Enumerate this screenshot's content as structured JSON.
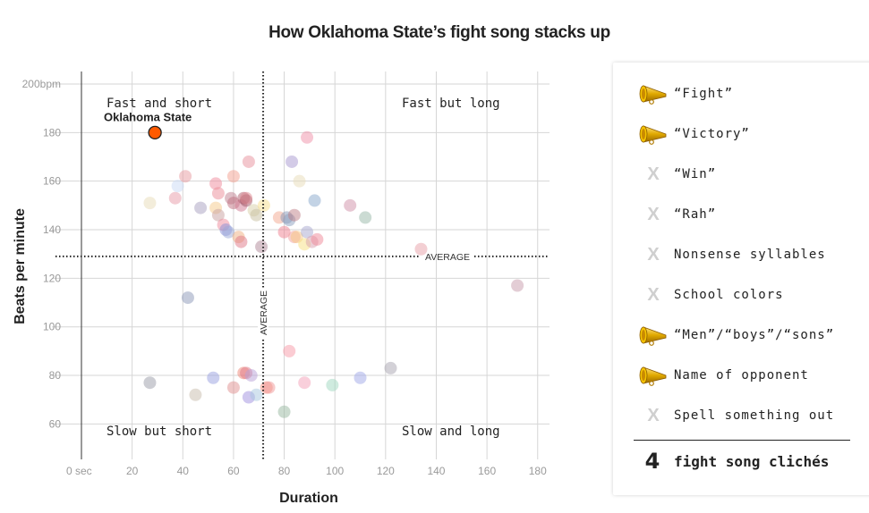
{
  "chart_data": {
    "type": "scatter",
    "title": "How Oklahoma State’s fight song stacks up",
    "xlabel": "Duration",
    "ylabel": "Beats per minute",
    "xlim": [
      0,
      184
    ],
    "ylim": [
      46,
      205
    ],
    "x_ticks": [
      {
        "value": 0,
        "label": "0 sec"
      },
      {
        "value": 20,
        "label": "20"
      },
      {
        "value": 40,
        "label": "40"
      },
      {
        "value": 60,
        "label": "60"
      },
      {
        "value": 80,
        "label": "80"
      },
      {
        "value": 100,
        "label": "100"
      },
      {
        "value": 120,
        "label": "120"
      },
      {
        "value": 140,
        "label": "140"
      },
      {
        "value": 160,
        "label": "160"
      },
      {
        "value": 180,
        "label": "180"
      }
    ],
    "y_ticks": [
      {
        "value": 60,
        "label": "60"
      },
      {
        "value": 80,
        "label": "80"
      },
      {
        "value": 100,
        "label": "100"
      },
      {
        "value": 120,
        "label": "120"
      },
      {
        "value": 140,
        "label": "140"
      },
      {
        "value": 160,
        "label": "160"
      },
      {
        "value": 180,
        "label": "180"
      },
      {
        "value": 200,
        "label": "200bpm"
      }
    ],
    "grid": true,
    "average": {
      "duration": 71.7,
      "bpm": 129,
      "label": "AVERAGE"
    },
    "quadrant_labels": {
      "top_left": "Fast and short",
      "top_right": "Fast but long",
      "bottom_left": "Slow but short",
      "bottom_right": "Slow and long"
    },
    "highlight": {
      "name": "Oklahoma State",
      "duration": 29,
      "bpm": 180,
      "color": "#ff5a00"
    },
    "points": [
      {
        "duration": 27,
        "bpm": 151,
        "color": "#e8dcb8"
      },
      {
        "duration": 37,
        "bpm": 153,
        "color": "#e89aa8"
      },
      {
        "duration": 38,
        "bpm": 158,
        "color": "#c9daf5"
      },
      {
        "duration": 41,
        "bpm": 162,
        "color": "#e89aa0"
      },
      {
        "duration": 47,
        "bpm": 149,
        "color": "#a8a0c0"
      },
      {
        "duration": 53,
        "bpm": 149,
        "color": "#f5c98a"
      },
      {
        "duration": 53,
        "bpm": 159,
        "color": "#f08a9c"
      },
      {
        "duration": 54,
        "bpm": 155,
        "color": "#ec8c98"
      },
      {
        "duration": 54,
        "bpm": 146,
        "color": "#c8a0a0"
      },
      {
        "duration": 56,
        "bpm": 142,
        "color": "#f08a9c"
      },
      {
        "duration": 57,
        "bpm": 140,
        "color": "#8a90d8"
      },
      {
        "duration": 58,
        "bpm": 139,
        "color": "#9aa8d8"
      },
      {
        "duration": 59,
        "bpm": 153,
        "color": "#c08090"
      },
      {
        "duration": 60,
        "bpm": 151,
        "color": "#c07080"
      },
      {
        "duration": 60,
        "bpm": 162,
        "color": "#f4a090"
      },
      {
        "duration": 62,
        "bpm": 137,
        "color": "#f0b080"
      },
      {
        "duration": 63,
        "bpm": 135,
        "color": "#e07888"
      },
      {
        "duration": 63,
        "bpm": 150,
        "color": "#d07890"
      },
      {
        "duration": 64,
        "bpm": 153,
        "color": "#b06070"
      },
      {
        "duration": 65,
        "bpm": 152,
        "color": "#a05868"
      },
      {
        "duration": 65,
        "bpm": 153,
        "color": "#e08890"
      },
      {
        "duration": 66,
        "bpm": 168,
        "color": "#e8909c"
      },
      {
        "duration": 68,
        "bpm": 148,
        "color": "#d8d0a8"
      },
      {
        "duration": 69,
        "bpm": 146,
        "color": "#c8c0a0"
      },
      {
        "duration": 71,
        "bpm": 133,
        "color": "#b08898"
      },
      {
        "duration": 72,
        "bpm": 150,
        "color": "#f8e08c"
      },
      {
        "duration": 78,
        "bpm": 145,
        "color": "#f4a890"
      },
      {
        "duration": 80,
        "bpm": 139,
        "color": "#f08090"
      },
      {
        "duration": 81,
        "bpm": 145,
        "color": "#8898b8"
      },
      {
        "duration": 82,
        "bpm": 144,
        "color": "#8ca0c0"
      },
      {
        "duration": 83,
        "bpm": 168,
        "color": "#a898d0"
      },
      {
        "duration": 84,
        "bpm": 146,
        "color": "#c08088"
      },
      {
        "duration": 84,
        "bpm": 137,
        "color": "#f0a0a0"
      },
      {
        "duration": 85,
        "bpm": 137,
        "color": "#f8c880"
      },
      {
        "duration": 86,
        "bpm": 160,
        "color": "#e8dcb8"
      },
      {
        "duration": 88,
        "bpm": 134,
        "color": "#f8e080"
      },
      {
        "duration": 89,
        "bpm": 139,
        "color": "#a8a8d0"
      },
      {
        "duration": 89,
        "bpm": 178,
        "color": "#f090a8"
      },
      {
        "duration": 91,
        "bpm": 135,
        "color": "#d8a0b0"
      },
      {
        "duration": 92,
        "bpm": 152,
        "color": "#88a8cc"
      },
      {
        "duration": 93,
        "bpm": 136,
        "color": "#f08898"
      },
      {
        "duration": 106,
        "bpm": 150,
        "color": "#d090a8"
      },
      {
        "duration": 112,
        "bpm": 145,
        "color": "#98b8a8"
      },
      {
        "duration": 134,
        "bpm": 132,
        "color": "#e8a0a8"
      },
      {
        "duration": 172,
        "bpm": 117,
        "color": "#c89cac"
      },
      {
        "duration": 42,
        "bpm": 112,
        "color": "#8c98b8"
      },
      {
        "duration": 27,
        "bpm": 77,
        "color": "#9a9ca8"
      },
      {
        "duration": 45,
        "bpm": 72,
        "color": "#c8bcac"
      },
      {
        "duration": 52,
        "bpm": 79,
        "color": "#98a0e0"
      },
      {
        "duration": 60,
        "bpm": 75,
        "color": "#e09090"
      },
      {
        "duration": 64,
        "bpm": 81,
        "color": "#f08878"
      },
      {
        "duration": 65,
        "bpm": 81,
        "color": "#e07888"
      },
      {
        "duration": 66,
        "bpm": 71,
        "color": "#a090e0"
      },
      {
        "duration": 67,
        "bpm": 80,
        "color": "#b8a0d8"
      },
      {
        "duration": 69,
        "bpm": 72,
        "color": "#a8c8e0"
      },
      {
        "duration": 73,
        "bpm": 75,
        "color": "#f89080"
      },
      {
        "duration": 74,
        "bpm": 75,
        "color": "#f09898"
      },
      {
        "duration": 80,
        "bpm": 65,
        "color": "#98b8a0"
      },
      {
        "duration": 82,
        "bpm": 90,
        "color": "#f89aa8"
      },
      {
        "duration": 88,
        "bpm": 77,
        "color": "#f4a0b8"
      },
      {
        "duration": 99,
        "bpm": 76,
        "color": "#a0d8c0"
      },
      {
        "duration": 110,
        "bpm": 79,
        "color": "#a0a8e8"
      },
      {
        "duration": 122,
        "bpm": 83,
        "color": "#a8a4b0"
      }
    ]
  },
  "panel": {
    "items": [
      {
        "label": "“Fight”",
        "present": true,
        "icon": "megaphone-icon"
      },
      {
        "label": "“Victory”",
        "present": true,
        "icon": "megaphone-icon"
      },
      {
        "label": "“Win”",
        "present": false,
        "icon": "x-icon"
      },
      {
        "label": "“Rah”",
        "present": false,
        "icon": "x-icon"
      },
      {
        "label": "Nonsense syllables",
        "present": false,
        "icon": "x-icon"
      },
      {
        "label": "School colors",
        "present": false,
        "icon": "x-icon"
      },
      {
        "label": "“Men”/“boys”/“sons”",
        "present": true,
        "icon": "megaphone-icon"
      },
      {
        "label": "Name of opponent",
        "present": true,
        "icon": "megaphone-icon"
      },
      {
        "label": "Spell something out",
        "present": false,
        "icon": "x-icon"
      }
    ],
    "x_glyph": "X",
    "total_count": "4",
    "total_label": "fight song clichés"
  }
}
